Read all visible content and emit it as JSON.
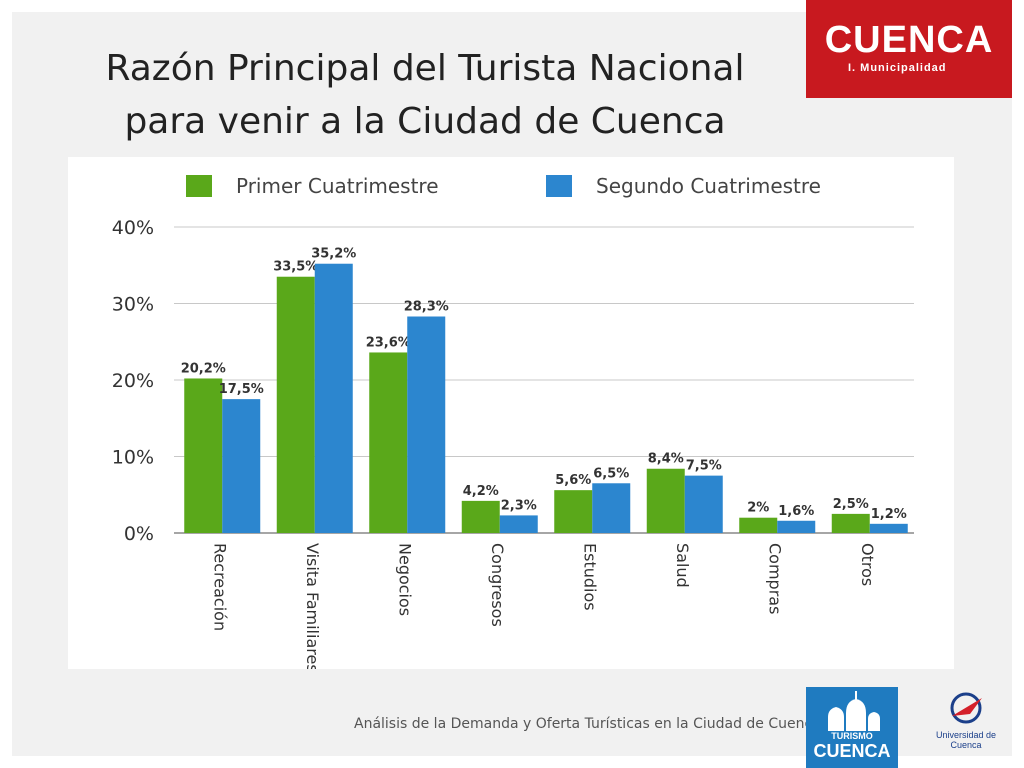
{
  "slide": {
    "title_line1": "Razón Principal del Turista Nacional",
    "title_line2": "para venir a la Ciudad de Cuenca",
    "footer": "Análisis de la Demanda y Oferta Turísticas en la Ciudad de Cuenca"
  },
  "logos": {
    "cuenca_word": "CUENCA",
    "cuenca_sub": "I. Municipalidad",
    "turismo_small": "TURISMO",
    "turismo_word": "CUENCA",
    "universidad": "Universidad de Cuenca"
  },
  "colors": {
    "primer": "#5aa81a",
    "segundo": "#2c86cf",
    "logo_red": "#c8191f",
    "logo_blue": "#1f7bc0"
  },
  "chart_data": {
    "type": "bar",
    "title": "Razón Principal del Turista Nacional para venir a la Ciudad de Cuenca",
    "categories": [
      "Recreación",
      "Visita Familiares",
      "Negocios",
      "Congresos",
      "Estudios",
      "Salud",
      "Compras",
      "Otros"
    ],
    "series": [
      {
        "name": "Primer Cuatrimestre",
        "values": [
          20.2,
          33.5,
          23.6,
          4.2,
          5.6,
          8.4,
          2.0,
          2.5
        ],
        "labels": [
          "20,2%",
          "33,5%",
          "23,6%",
          "4,2%",
          "5,6%",
          "8,4%",
          "2%",
          "2,5%"
        ]
      },
      {
        "name": "Segundo Cuatrimestre",
        "values": [
          17.5,
          35.2,
          28.3,
          2.3,
          6.5,
          7.5,
          1.6,
          1.2
        ],
        "labels": [
          "17,5%",
          "35,2%",
          "28,3%",
          "2,3%",
          "6,5%",
          "7,5%",
          "1,6%",
          "1,2%"
        ]
      }
    ],
    "yticks": [
      "0%",
      "10%",
      "20%",
      "30%",
      "40%"
    ],
    "ylim": [
      0,
      40
    ],
    "grid": true,
    "legend": "top",
    "xlabel": "",
    "ylabel": ""
  }
}
